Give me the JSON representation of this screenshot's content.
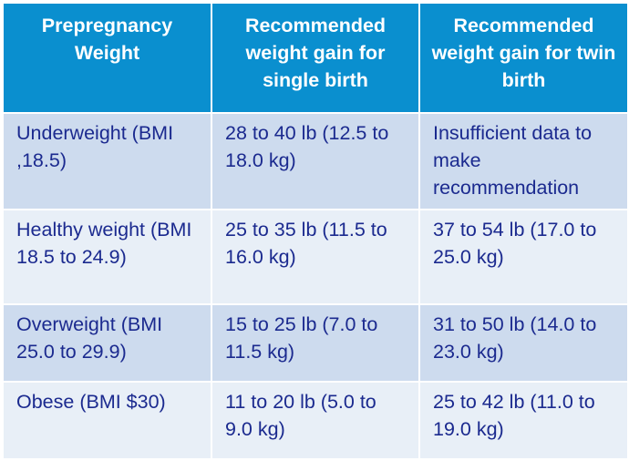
{
  "headers": [
    "Prepregnancy Weight",
    "Recommended weight gain for single birth",
    "Recommended weight gain for twin birth"
  ],
  "rows": [
    [
      "Underweight (BMI ,18.5)",
      "28 to 40 lb (12.5 to 18.0 kg)",
      "Insufficient data to make recommendation"
    ],
    [
      "Healthy weight (BMI 18.5 to 24.9)",
      "25 to 35 lb (11.5 to 16.0 kg)",
      "37 to 54 lb (17.0 to 25.0 kg)"
    ],
    [
      "Overweight (BMI 25.0 to 29.9)",
      "15 to 25 lb (7.0 to 11.5 kg)",
      "31 to 50 lb (14.0 to 23.0 kg)"
    ],
    [
      "Obese (BMI $30)",
      "11 to 20 lb (5.0 to 9.0 kg)",
      "25 to 42 lb (11.0 to 19.0 kg)"
    ]
  ],
  "colors": {
    "header_bg": "#0a8fcf",
    "header_text": "#ffffff",
    "row_dark": "#cddbee",
    "row_light": "#e8eff7",
    "body_text": "#1b2a8f"
  }
}
